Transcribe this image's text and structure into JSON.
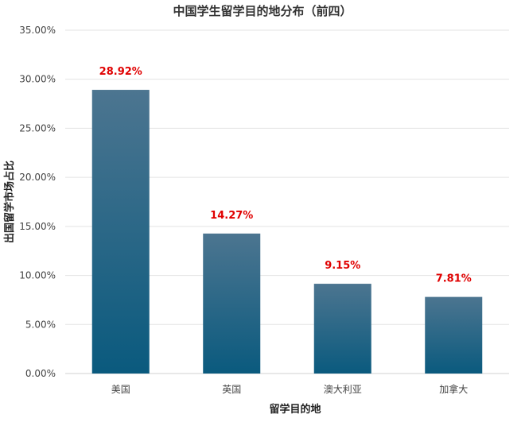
{
  "chart_data": {
    "type": "bar",
    "title": "中国学生留学目的地分布（前四）",
    "xlabel": "留学目的地",
    "ylabel": "出国留学市场占比",
    "categories": [
      "美国",
      "英国",
      "澳大利亚",
      "加拿大"
    ],
    "values": [
      28.92,
      14.27,
      9.15,
      7.81
    ],
    "data_labels": [
      "28.92%",
      "14.27%",
      "9.15%",
      "7.81%"
    ],
    "ylim": [
      0,
      35
    ],
    "y_ticks": [
      0,
      5,
      10,
      15,
      20,
      25,
      30,
      35
    ],
    "y_tick_labels": [
      "0.00%",
      "5.00%",
      "10.00%",
      "15.00%",
      "20.00%",
      "25.00%",
      "30.00%",
      "35.00%"
    ],
    "grid": true,
    "legend": "none",
    "colors": {
      "bar_top": "#4c7590",
      "bar_bottom": "#0a5a7e",
      "data_label": "#e00000"
    }
  }
}
